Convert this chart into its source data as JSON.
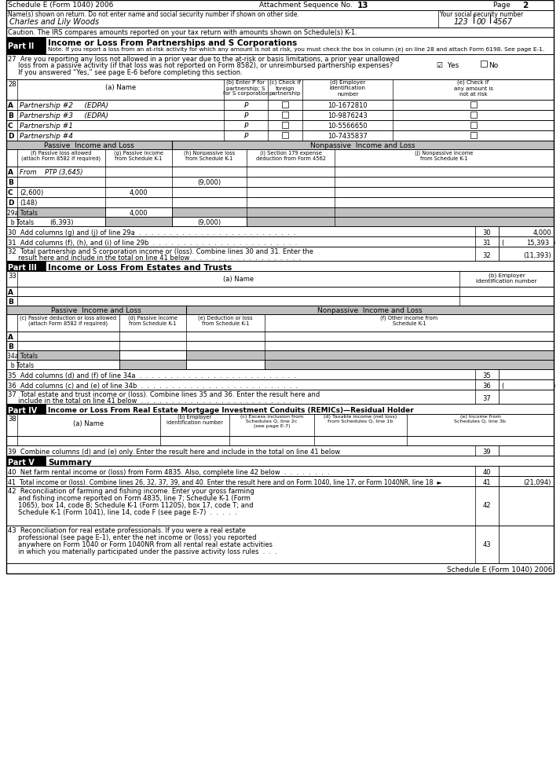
{
  "title_left": "Schedule E (Form 1040) 2006",
  "title_center": "Attachment Sequence No. ",
  "title_13": "13",
  "title_page": "Page ",
  "title_2": "2",
  "name_label": "Name(s) shown on return. Do not enter name and social security number if shown on other side.",
  "name_value": "Charles and Lily Woods",
  "ssn_label": "Your social security number",
  "ssn_value": "123  00  4567",
  "caution": "Caution. The IRS compares amounts reported on your tax return with amounts shown on Schedule(s) K-1.",
  "part2_title": "Income or Loss From Partnerships and S Corporations",
  "part2_note": "Note. If you report a loss from an at-risk activity for which any amount is not at risk, you must check the box in column (e) on line 28 and attach Form 6198. See page E-1.",
  "line27_1": "27  Are you reporting any loss not allowed in a prior year due to the at-risk or basis limitations, a prior year unallowed",
  "line27_2": "     loss from a passive activity (if that loss was not reported on Form 8582), or unreimbursed partnership expenses?",
  "line27_3": "     If you answered “Yes,” see page E-6 before completing this section.",
  "partnerships": [
    [
      "A",
      "Partnership #2     (EDPA)",
      "P",
      "10-1672810"
    ],
    [
      "B",
      "Partnership #3     (EDPA)",
      "P",
      "10-9876243"
    ],
    [
      "C",
      "Partnership #1",
      "P",
      "10-5566650"
    ],
    [
      "D",
      "Partnership #4",
      "P",
      "10-7435837"
    ]
  ],
  "passive_header": "Passive  Income and Loss",
  "nonpassive_header": "Nonpassive  Income and Loss",
  "col_f_header": "(f) Passive loss allowed\n(attach Form 8582 if required)",
  "col_g_header": "(g) Passive income\nfrom Schedule K-1",
  "col_h_header": "(h) Nonpassive loss\nfrom Schedule K-1",
  "col_i_header": "(i) Section 179 expense\ndeduction from Form 4562",
  "col_j_header": "(j) Nonpassive income\nfrom Schedule K-1",
  "passive_rows": [
    [
      "A",
      "From    PTP (3,645)",
      "",
      "",
      "",
      ""
    ],
    [
      "B",
      "",
      "",
      "(9,000)",
      "",
      ""
    ],
    [
      "C",
      "(2,600)",
      "4,000",
      "",
      "",
      ""
    ],
    [
      "D",
      "(148)",
      "",
      "",
      "",
      ""
    ]
  ],
  "shaded_bg": "#C0C0C0",
  "footer": "Schedule E (Form 1040) 2006"
}
